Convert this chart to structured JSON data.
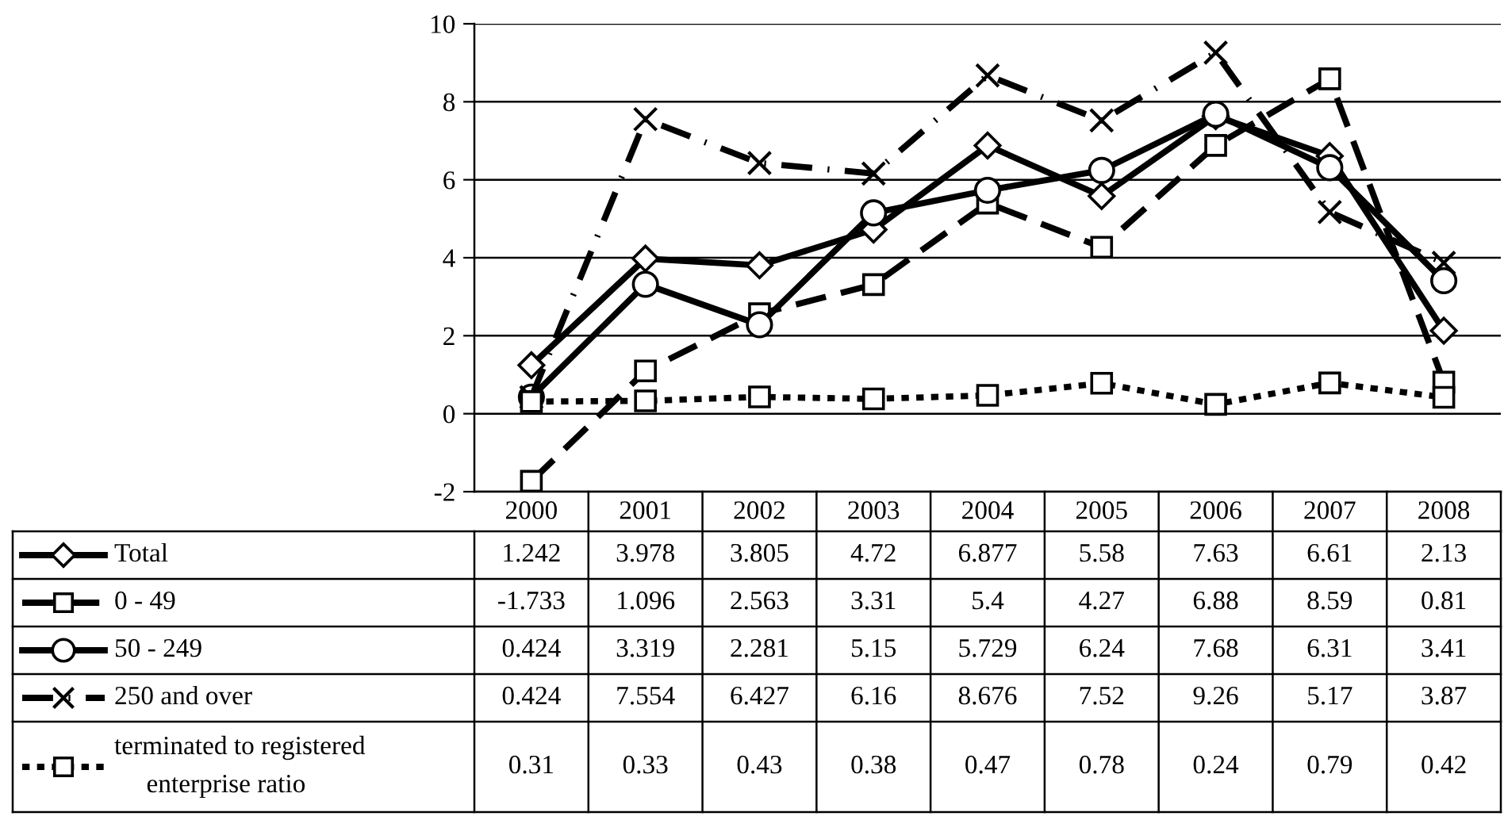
{
  "chart_data": {
    "type": "line",
    "categories": [
      "2000",
      "2001",
      "2002",
      "2003",
      "2004",
      "2005",
      "2006",
      "2007",
      "2008"
    ],
    "series": [
      {
        "name": "Total",
        "color": "#000000",
        "marker": "diamond",
        "line_style": "solid",
        "values": [
          1.242,
          3.978,
          3.805,
          4.72,
          6.877,
          5.58,
          7.63,
          6.61,
          2.13
        ]
      },
      {
        "name": "0 - 49",
        "color": "#000000",
        "marker": "square",
        "line_style": "dashed",
        "values": [
          -1.733,
          1.096,
          2.563,
          3.31,
          5.4,
          4.27,
          6.88,
          8.59,
          0.81
        ]
      },
      {
        "name": "50 - 249",
        "color": "#000000",
        "marker": "circle",
        "line_style": "solid",
        "values": [
          0.424,
          3.319,
          2.281,
          5.15,
          5.729,
          6.24,
          7.68,
          6.31,
          3.41
        ]
      },
      {
        "name": "250 and over",
        "color": "#000000",
        "marker": "cross",
        "line_style": "dashdot",
        "values": [
          0.424,
          7.554,
          6.427,
          6.16,
          8.676,
          7.52,
          9.26,
          5.17,
          3.87
        ]
      },
      {
        "name": "terminated to registered enterprise ratio",
        "color": "#000000",
        "marker": "square",
        "line_style": "dotted",
        "values": [
          0.31,
          0.33,
          0.43,
          0.38,
          0.47,
          0.78,
          0.24,
          0.79,
          0.42
        ]
      }
    ],
    "ylim": [
      -2,
      10
    ],
    "yticks": [
      -2,
      0,
      2,
      4,
      6,
      8,
      10
    ],
    "grid": "y",
    "legend": "bottom left",
    "data_labels": true
  }
}
